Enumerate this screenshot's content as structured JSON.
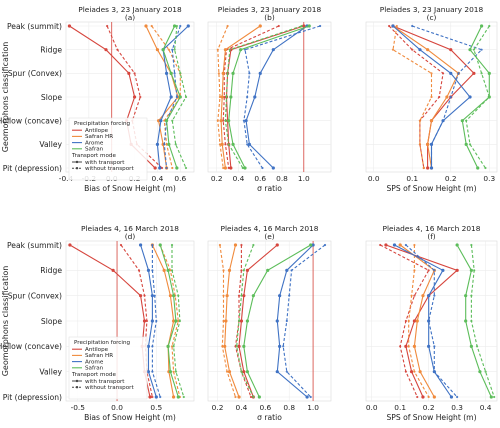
{
  "y_label": "Geomorphons classification",
  "categories": [
    "Peak (summit)",
    "Ridge",
    "Spur (Convex)",
    "Slope",
    "Hollow (concave)",
    "Valley",
    "Pit (depression)"
  ],
  "colors": {
    "Antilope": "#d6453d",
    "Safran HR": "#f08a3c",
    "Arome": "#3f72c4",
    "Safran": "#5cbd5a",
    "reference": "#d6453d"
  },
  "legend": {
    "title_forcing": "Precipitation forcing",
    "forcings": [
      "Antilope",
      "Safran HR",
      "Arome",
      "Safran"
    ],
    "title_mode": "Transport mode",
    "modes": [
      "with transport",
      "without transport"
    ]
  },
  "chart_data": [
    {
      "type": "line",
      "title": "Pleiades 3, 23 January 2018",
      "subtitle": "(a)",
      "xlabel": "Bias of Snow Height (m)",
      "xlim": [
        -0.4,
        0.72
      ],
      "xticks": [
        "-0.4",
        "-0.2",
        "0.0",
        "0.2",
        "0.4",
        "0.6"
      ],
      "xtick_values": [
        -0.4,
        -0.2,
        0,
        0.2,
        0.4,
        0.6
      ],
      "ref": 0,
      "legend": true,
      "series": [
        {
          "name": "Antilope",
          "mode": "with transport",
          "values": [
            -0.37,
            -0.05,
            0.15,
            0.2,
            0.13,
            0.17,
            0.38
          ]
        },
        {
          "name": "Antilope",
          "mode": "without transport",
          "values": [
            -0.04,
            0.05,
            0.2,
            0.25,
            0.18,
            0.22,
            0.44
          ]
        },
        {
          "name": "Safran HR",
          "mode": "with transport",
          "values": [
            0.3,
            0.4,
            0.52,
            0.58,
            0.41,
            0.45,
            0.48
          ]
        },
        {
          "name": "Safran HR",
          "mode": "without transport",
          "values": [
            0.35,
            0.5,
            0.6,
            0.6,
            0.46,
            0.48,
            0.53
          ]
        },
        {
          "name": "Arome",
          "mode": "with transport",
          "values": [
            0.67,
            0.45,
            0.48,
            0.52,
            0.43,
            0.4,
            0.42
          ]
        },
        {
          "name": "Arome",
          "mode": "without transport",
          "values": [
            0.6,
            0.53,
            0.55,
            0.57,
            0.48,
            0.46,
            0.48
          ]
        },
        {
          "name": "Safran",
          "mode": "with transport",
          "values": [
            0.55,
            0.45,
            0.52,
            0.6,
            0.48,
            0.5,
            0.57
          ]
        },
        {
          "name": "Safran",
          "mode": "without transport",
          "values": [
            0.57,
            0.55,
            0.6,
            0.65,
            0.53,
            0.56,
            0.65
          ]
        }
      ]
    },
    {
      "type": "line",
      "title": "Pleiades 3, 23 January 2018",
      "subtitle": "(b)",
      "xlabel": "σ ratio",
      "xlim": [
        0.12,
        1.25
      ],
      "xticks": [
        "0.2",
        "0.4",
        "0.6",
        "0.8",
        "1.0"
      ],
      "xtick_values": [
        0.2,
        0.4,
        0.6,
        0.8,
        1.0
      ],
      "ref": 1,
      "legend": false,
      "series": [
        {
          "name": "Antilope",
          "mode": "with transport",
          "values": [
            1.0,
            0.33,
            0.3,
            0.29,
            0.3,
            0.31,
            0.33
          ]
        },
        {
          "name": "Antilope",
          "mode": "without transport",
          "values": [
            0.77,
            0.29,
            0.27,
            0.27,
            0.26,
            0.28,
            0.31
          ]
        },
        {
          "name": "Safran HR",
          "mode": "with transport",
          "values": [
            0.6,
            0.28,
            0.26,
            0.25,
            0.24,
            0.25,
            0.28
          ]
        },
        {
          "name": "Safran HR",
          "mode": "without transport",
          "values": [
            0.3,
            0.21,
            0.22,
            0.23,
            0.21,
            0.23,
            0.26
          ]
        },
        {
          "name": "Arome",
          "mode": "with transport",
          "values": [
            1.03,
            0.72,
            0.6,
            0.55,
            0.47,
            0.5,
            0.72
          ]
        },
        {
          "name": "Arome",
          "mode": "without transport",
          "values": [
            1.15,
            0.46,
            0.5,
            0.48,
            0.45,
            0.48,
            0.62
          ]
        },
        {
          "name": "Safran",
          "mode": "with transport",
          "values": [
            1.05,
            0.42,
            0.35,
            0.33,
            0.31,
            0.35,
            0.46
          ]
        },
        {
          "name": "Safran",
          "mode": "without transport",
          "values": [
            0.98,
            0.32,
            0.3,
            0.29,
            0.28,
            0.31,
            0.44
          ]
        }
      ]
    },
    {
      "type": "line",
      "title": "Pleiades 3, 23 January 2018",
      "subtitle": "(c)",
      "xlabel": "SPS of Snow Height (m)",
      "xlim": [
        -0.02,
        0.32
      ],
      "xticks": [
        "0.0",
        "0.1",
        "0.2",
        "0.3"
      ],
      "xtick_values": [
        0,
        0.1,
        0.2,
        0.3
      ],
      "ref": null,
      "legend": false,
      "series": [
        {
          "name": "Antilope",
          "mode": "with transport",
          "values": [
            0.05,
            0.2,
            0.26,
            0.2,
            0.15,
            0.14,
            0.14
          ]
        },
        {
          "name": "Antilope",
          "mode": "without transport",
          "values": [
            0.04,
            0.1,
            0.18,
            0.17,
            0.12,
            0.12,
            0.13
          ]
        },
        {
          "name": "Safran HR",
          "mode": "with transport",
          "values": [
            0.05,
            0.14,
            0.22,
            0.19,
            0.15,
            0.14,
            0.15
          ]
        },
        {
          "name": "Safran HR",
          "mode": "without transport",
          "values": [
            0.06,
            0.05,
            0.15,
            0.15,
            0.12,
            0.12,
            0.13
          ]
        },
        {
          "name": "Arome",
          "mode": "with transport",
          "values": [
            0.05,
            0.12,
            0.2,
            0.25,
            0.18,
            0.15,
            0.15
          ]
        },
        {
          "name": "Arome",
          "mode": "without transport",
          "values": [
            0.1,
            0.28,
            0.22,
            0.2,
            0.18,
            0.15,
            0.15
          ]
        },
        {
          "name": "Safran",
          "mode": "with transport",
          "values": [
            0.28,
            0.25,
            0.3,
            0.3,
            0.23,
            0.24,
            0.27
          ]
        },
        {
          "name": "Safran",
          "mode": "without transport",
          "values": [
            0.3,
            0.26,
            0.28,
            0.3,
            0.24,
            0.25,
            0.29
          ]
        }
      ]
    },
    {
      "type": "line",
      "title": "Pleiades 4, 16 March 2018",
      "subtitle": "(d)",
      "xlabel": "Bias of Snow Height (m)",
      "xlim": [
        -0.65,
        0.98
      ],
      "xticks": [
        "-0.5",
        "0.0",
        "0.5"
      ],
      "xtick_values": [
        -0.5,
        0,
        0.5
      ],
      "ref": 0,
      "legend": true,
      "series": [
        {
          "name": "Antilope",
          "mode": "with transport",
          "values": [
            -0.6,
            -0.05,
            0.3,
            0.35,
            0.32,
            0.35,
            0.42
          ]
        },
        {
          "name": "Antilope",
          "mode": "without transport",
          "values": [
            0.05,
            0.28,
            0.35,
            0.38,
            0.36,
            0.38,
            0.45
          ]
        },
        {
          "name": "Safran HR",
          "mode": "with transport",
          "values": [
            0.45,
            0.6,
            0.68,
            0.72,
            0.65,
            0.66,
            0.72
          ]
        },
        {
          "name": "Safran HR",
          "mode": "without transport",
          "values": [
            0.55,
            0.68,
            0.74,
            0.78,
            0.7,
            0.72,
            0.8
          ]
        },
        {
          "name": "Arome",
          "mode": "with transport",
          "values": [
            0.3,
            0.4,
            0.45,
            0.45,
            0.4,
            0.4,
            0.5
          ]
        },
        {
          "name": "Arome",
          "mode": "without transport",
          "values": [
            0.45,
            0.45,
            0.48,
            0.5,
            0.45,
            0.45,
            0.55
          ]
        },
        {
          "name": "Safran",
          "mode": "with transport",
          "values": [
            0.55,
            0.65,
            0.72,
            0.75,
            0.65,
            0.68,
            0.78
          ]
        },
        {
          "name": "Safran",
          "mode": "without transport",
          "values": [
            0.7,
            0.7,
            0.78,
            0.8,
            0.72,
            0.75,
            0.85
          ]
        }
      ]
    },
    {
      "type": "line",
      "title": "Pleiades 4, 16 March 2018",
      "subtitle": "(e)",
      "xlabel": "σ ratio",
      "xlim": [
        0.12,
        1.15
      ],
      "xticks": [
        "0.2",
        "0.4",
        "0.6",
        "0.8",
        "1.0"
      ],
      "xtick_values": [
        0.2,
        0.4,
        0.6,
        0.8,
        1.0
      ],
      "ref": 1,
      "legend": false,
      "series": [
        {
          "name": "Antilope",
          "mode": "with transport",
          "values": [
            0.7,
            0.45,
            0.42,
            0.4,
            0.38,
            0.42,
            0.5
          ]
        },
        {
          "name": "Antilope",
          "mode": "without transport",
          "values": [
            0.4,
            0.4,
            0.38,
            0.38,
            0.35,
            0.4,
            0.48
          ]
        },
        {
          "name": "Safran HR",
          "mode": "with transport",
          "values": [
            0.35,
            0.3,
            0.28,
            0.27,
            0.26,
            0.3,
            0.38
          ]
        },
        {
          "name": "Safran HR",
          "mode": "without transport",
          "values": [
            0.22,
            0.25,
            0.25,
            0.25,
            0.24,
            0.28,
            0.35
          ]
        },
        {
          "name": "Arome",
          "mode": "with transport",
          "values": [
            1.0,
            0.78,
            0.72,
            0.7,
            0.72,
            0.7,
            0.95
          ]
        },
        {
          "name": "Arome",
          "mode": "without transport",
          "values": [
            1.1,
            0.82,
            0.8,
            0.78,
            0.75,
            0.78,
            0.98
          ]
        },
        {
          "name": "Safran",
          "mode": "with transport",
          "values": [
            0.98,
            0.62,
            0.5,
            0.45,
            0.42,
            0.45,
            0.55
          ]
        },
        {
          "name": "Safran",
          "mode": "without transport",
          "values": [
            0.5,
            0.42,
            0.4,
            0.38,
            0.36,
            0.4,
            0.5
          ]
        }
      ]
    },
    {
      "type": "line",
      "title": "Pleiades 4, 16 March 2018",
      "subtitle": "(f)",
      "xlabel": "SPS of Snow Height (m)",
      "xlim": [
        -0.02,
        0.44
      ],
      "xticks": [
        "0.0",
        "0.1",
        "0.2",
        "0.3",
        "0.4"
      ],
      "xtick_values": [
        0,
        0.1,
        0.2,
        0.3,
        0.4
      ],
      "ref": null,
      "legend": false,
      "series": [
        {
          "name": "Antilope",
          "mode": "with transport",
          "values": [
            0.05,
            0.3,
            0.2,
            0.15,
            0.12,
            0.14,
            0.18
          ]
        },
        {
          "name": "Antilope",
          "mode": "without transport",
          "values": [
            0.03,
            0.2,
            0.15,
            0.12,
            0.1,
            0.12,
            0.16
          ]
        },
        {
          "name": "Safran HR",
          "mode": "with transport",
          "values": [
            0.1,
            0.22,
            0.18,
            0.16,
            0.15,
            0.17,
            0.22
          ]
        },
        {
          "name": "Safran HR",
          "mode": "without transport",
          "values": [
            0.15,
            0.15,
            0.14,
            0.13,
            0.13,
            0.15,
            0.2
          ]
        },
        {
          "name": "Arome",
          "mode": "with transport",
          "values": [
            0.08,
            0.25,
            0.2,
            0.2,
            0.2,
            0.22,
            0.28
          ]
        },
        {
          "name": "Arome",
          "mode": "without transport",
          "values": [
            0.12,
            0.22,
            0.22,
            0.2,
            0.22,
            0.22,
            0.3
          ]
        },
        {
          "name": "Safran",
          "mode": "with transport",
          "values": [
            0.3,
            0.35,
            0.33,
            0.33,
            0.35,
            0.38,
            0.42
          ]
        },
        {
          "name": "Safran",
          "mode": "without transport",
          "values": [
            0.35,
            0.36,
            0.35,
            0.35,
            0.37,
            0.4,
            0.43
          ]
        }
      ]
    }
  ]
}
